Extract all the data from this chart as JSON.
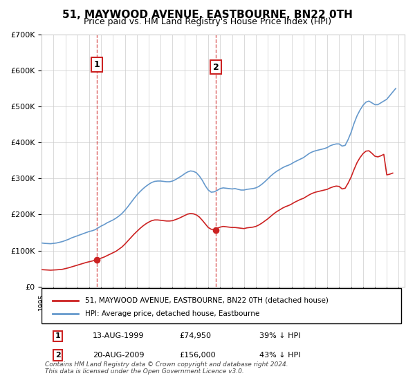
{
  "title": "51, MAYWOOD AVENUE, EASTBOURNE, BN22 0TH",
  "subtitle": "Price paid vs. HM Land Registry's House Price Index (HPI)",
  "ylabel": "",
  "xlabel": "",
  "ylim": [
    0,
    700000
  ],
  "yticks": [
    0,
    100000,
    200000,
    300000,
    400000,
    500000,
    600000,
    700000
  ],
  "ytick_labels": [
    "£0",
    "£100K",
    "£200K",
    "£300K",
    "£400K",
    "£500K",
    "£600K",
    "£700K"
  ],
  "xlim_start": 1995.0,
  "xlim_end": 2025.5,
  "hpi_color": "#6699cc",
  "price_color": "#cc2222",
  "vline_color": "#cc2222",
  "marker1_year": 1999.617,
  "marker1_price": 74950,
  "marker2_year": 2009.633,
  "marker2_price": 156000,
  "legend_label_red": "51, MAYWOOD AVENUE, EASTBOURNE, BN22 0TH (detached house)",
  "legend_label_blue": "HPI: Average price, detached house, Eastbourne",
  "table_row1": [
    "1",
    "13-AUG-1999",
    "£74,950",
    "39% ↓ HPI"
  ],
  "table_row2": [
    "2",
    "20-AUG-2009",
    "£156,000",
    "43% ↓ HPI"
  ],
  "footnote": "Contains HM Land Registry data © Crown copyright and database right 2024.\nThis data is licensed under the Open Government Licence v3.0.",
  "hpi_data": {
    "years": [
      1995.0,
      1995.25,
      1995.5,
      1995.75,
      1996.0,
      1996.25,
      1996.5,
      1996.75,
      1997.0,
      1997.25,
      1997.5,
      1997.75,
      1998.0,
      1998.25,
      1998.5,
      1998.75,
      1999.0,
      1999.25,
      1999.5,
      1999.75,
      2000.0,
      2000.25,
      2000.5,
      2000.75,
      2001.0,
      2001.25,
      2001.5,
      2001.75,
      2002.0,
      2002.25,
      2002.5,
      2002.75,
      2003.0,
      2003.25,
      2003.5,
      2003.75,
      2004.0,
      2004.25,
      2004.5,
      2004.75,
      2005.0,
      2005.25,
      2005.5,
      2005.75,
      2006.0,
      2006.25,
      2006.5,
      2006.75,
      2007.0,
      2007.25,
      2007.5,
      2007.75,
      2008.0,
      2008.25,
      2008.5,
      2008.75,
      2009.0,
      2009.25,
      2009.5,
      2009.75,
      2010.0,
      2010.25,
      2010.5,
      2010.75,
      2011.0,
      2011.25,
      2011.5,
      2011.75,
      2012.0,
      2012.25,
      2012.5,
      2012.75,
      2013.0,
      2013.25,
      2013.5,
      2013.75,
      2014.0,
      2014.25,
      2014.5,
      2014.75,
      2015.0,
      2015.25,
      2015.5,
      2015.75,
      2016.0,
      2016.25,
      2016.5,
      2016.75,
      2017.0,
      2017.25,
      2017.5,
      2017.75,
      2018.0,
      2018.25,
      2018.5,
      2018.75,
      2019.0,
      2019.25,
      2019.5,
      2019.75,
      2020.0,
      2020.25,
      2020.5,
      2020.75,
      2021.0,
      2021.25,
      2021.5,
      2021.75,
      2022.0,
      2022.25,
      2022.5,
      2022.75,
      2023.0,
      2023.25,
      2023.5,
      2023.75,
      2024.0,
      2024.25,
      2024.5,
      2024.75
    ],
    "values": [
      121000,
      120000,
      119500,
      119000,
      120000,
      121000,
      123000,
      125000,
      128000,
      131000,
      135000,
      138000,
      141000,
      144000,
      147000,
      150000,
      153000,
      155000,
      158000,
      163000,
      168000,
      172000,
      177000,
      181000,
      185000,
      190000,
      196000,
      203000,
      212000,
      222000,
      233000,
      244000,
      254000,
      263000,
      271000,
      278000,
      284000,
      289000,
      292000,
      293000,
      293000,
      292000,
      291000,
      291000,
      293000,
      297000,
      302000,
      307000,
      313000,
      318000,
      321000,
      320000,
      316000,
      307000,
      295000,
      280000,
      268000,
      262000,
      263000,
      267000,
      272000,
      274000,
      273000,
      272000,
      271000,
      272000,
      270000,
      268000,
      268000,
      270000,
      271000,
      272000,
      274000,
      278000,
      284000,
      291000,
      299000,
      307000,
      314000,
      320000,
      325000,
      330000,
      334000,
      337000,
      341000,
      346000,
      350000,
      354000,
      358000,
      364000,
      370000,
      374000,
      377000,
      379000,
      381000,
      383000,
      386000,
      391000,
      394000,
      396000,
      396000,
      390000,
      392000,
      408000,
      428000,
      453000,
      474000,
      490000,
      503000,
      512000,
      515000,
      510000,
      505000,
      505000,
      510000,
      515000,
      520000,
      530000,
      540000,
      550000
    ]
  },
  "price_data": {
    "years": [
      1995.0,
      1995.25,
      1995.5,
      1995.75,
      1996.0,
      1996.25,
      1996.5,
      1996.75,
      1997.0,
      1997.25,
      1997.5,
      1997.75,
      1998.0,
      1998.25,
      1998.5,
      1998.75,
      1999.0,
      1999.25,
      1999.5,
      1999.75,
      2000.0,
      2000.25,
      2000.5,
      2000.75,
      2001.0,
      2001.25,
      2001.5,
      2001.75,
      2002.0,
      2002.25,
      2002.5,
      2002.75,
      2003.0,
      2003.25,
      2003.5,
      2003.75,
      2004.0,
      2004.25,
      2004.5,
      2004.75,
      2005.0,
      2005.25,
      2005.5,
      2005.75,
      2006.0,
      2006.25,
      2006.5,
      2006.75,
      2007.0,
      2007.25,
      2007.5,
      2007.75,
      2008.0,
      2008.25,
      2008.5,
      2008.75,
      2009.0,
      2009.25,
      2009.5,
      2009.75,
      2010.0,
      2010.25,
      2010.5,
      2010.75,
      2011.0,
      2011.25,
      2011.5,
      2011.75,
      2012.0,
      2012.25,
      2012.5,
      2012.75,
      2013.0,
      2013.25,
      2013.5,
      2013.75,
      2014.0,
      2014.25,
      2014.5,
      2014.75,
      2015.0,
      2015.25,
      2015.5,
      2015.75,
      2016.0,
      2016.25,
      2016.5,
      2016.75,
      2017.0,
      2017.25,
      2017.5,
      2017.75,
      2018.0,
      2018.25,
      2018.5,
      2018.75,
      2019.0,
      2019.25,
      2019.5,
      2019.75,
      2020.0,
      2020.25,
      2020.5,
      2020.75,
      2021.0,
      2021.25,
      2021.5,
      2021.75,
      2022.0,
      2022.25,
      2022.5,
      2022.75,
      2023.0,
      2023.25,
      2023.5,
      2023.75,
      2024.0,
      2024.25,
      2024.5
    ],
    "values": [
      47000,
      46500,
      46000,
      45500,
      46000,
      46500,
      47200,
      48000,
      50000,
      52000,
      54500,
      57000,
      59500,
      62000,
      64500,
      67000,
      69000,
      71000,
      73000,
      76000,
      79000,
      82000,
      86000,
      90000,
      94000,
      98000,
      104000,
      110000,
      118000,
      127000,
      136000,
      145000,
      153000,
      161000,
      168000,
      174000,
      179000,
      183000,
      185000,
      185000,
      184000,
      183000,
      182000,
      182000,
      183000,
      186000,
      189000,
      193000,
      197000,
      201000,
      203000,
      202000,
      199000,
      193000,
      184000,
      174000,
      164000,
      159000,
      159000,
      162000,
      165000,
      167000,
      166000,
      165000,
      164000,
      164000,
      163000,
      162000,
      161000,
      163000,
      164000,
      165000,
      167000,
      171000,
      176000,
      182000,
      188000,
      195000,
      202000,
      208000,
      213000,
      218000,
      222000,
      225000,
      229000,
      234000,
      238000,
      242000,
      245000,
      250000,
      255000,
      259000,
      262000,
      264000,
      266000,
      268000,
      270000,
      274000,
      277000,
      279000,
      278000,
      271000,
      273000,
      287000,
      304000,
      325000,
      344000,
      358000,
      369000,
      376000,
      377000,
      370000,
      362000,
      360000,
      363000,
      367000,
      310000,
      312000,
      315000
    ]
  }
}
